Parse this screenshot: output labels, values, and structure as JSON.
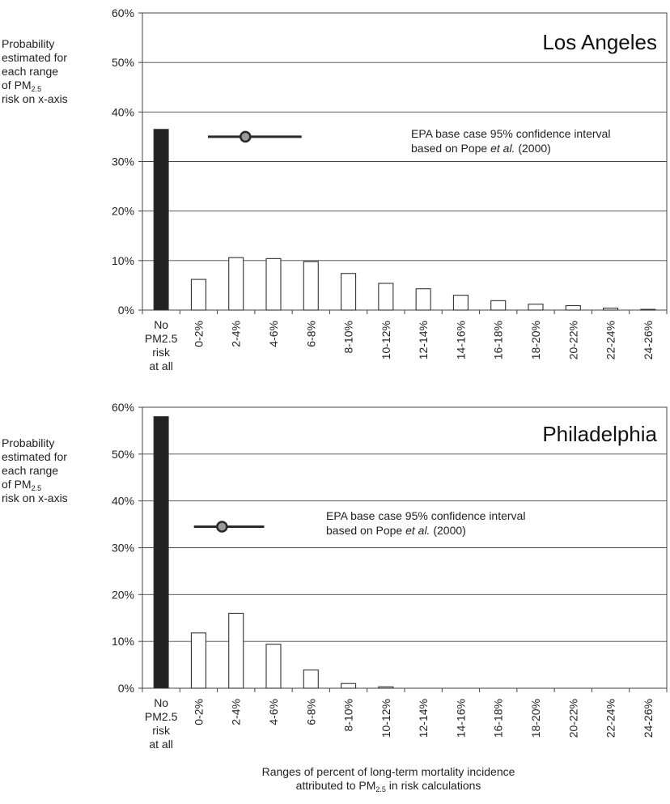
{
  "chart_data": [
    {
      "type": "bar",
      "title": "Los Angeles",
      "ylabel": {
        "line1": "Probability",
        "line2": "estimated for",
        "line3": "each range",
        "line4": "of PM",
        "line4_sub": "2.5",
        "line5": "risk on x-axis"
      },
      "ylim": [
        0,
        60
      ],
      "yticks": [
        "0%",
        "10%",
        "20%",
        "30%",
        "40%",
        "50%",
        "60%"
      ],
      "categories": [
        "No PM2.5 risk at all",
        "0-2%",
        "2-4%",
        "4-6%",
        "6-8%",
        "8-10%",
        "10-12%",
        "12-14%",
        "14-16%",
        "16-18%",
        "18-20%",
        "20-22%",
        "22-24%",
        "24-26%"
      ],
      "first_category_lines": [
        "No",
        "PM2.5",
        "risk",
        "at all"
      ],
      "values": [
        36.5,
        6.2,
        10.6,
        10.4,
        9.8,
        7.4,
        5.4,
        4.3,
        3.0,
        1.9,
        1.2,
        0.9,
        0.4,
        0.15
      ],
      "grid": true,
      "annotation": {
        "line1": "EPA base case 95% confidence interval",
        "line2_prefix": "based on Pope ",
        "line2_italic": "et al.",
        "line2_suffix": " (2000)",
        "interval_low": 1.5,
        "interval_high": 6.5,
        "interval_center": 3.5,
        "y_value": 35
      }
    },
    {
      "type": "bar",
      "title": "Philadelphia",
      "ylabel": {
        "line1": "Probability",
        "line2": "estimated for",
        "line3": "each range",
        "line4": "of PM",
        "line4_sub": "2.5",
        "line5": "risk on x-axis"
      },
      "ylim": [
        0,
        60
      ],
      "yticks": [
        "0%",
        "10%",
        "20%",
        "30%",
        "40%",
        "50%",
        "60%"
      ],
      "categories": [
        "No PM2.5 risk at all",
        "0-2%",
        "2-4%",
        "4-6%",
        "6-8%",
        "8-10%",
        "10-12%",
        "12-14%",
        "14-16%",
        "16-18%",
        "18-20%",
        "20-22%",
        "22-24%",
        "24-26%"
      ],
      "first_category_lines": [
        "No",
        "PM2.5",
        "risk",
        "at all"
      ],
      "values": [
        58,
        11.8,
        16,
        9.4,
        3.9,
        1.0,
        0.3,
        0,
        0,
        0,
        0,
        0,
        0,
        0
      ],
      "grid": true,
      "annotation": {
        "line1": "EPA base case 95% confidence interval",
        "line2_prefix": "based on Pope ",
        "line2_italic": "et al.",
        "line2_suffix": " (2000)",
        "interval_low": 0.75,
        "interval_high": 4.5,
        "interval_center": 2.25,
        "y_value": 34.5
      }
    }
  ],
  "xcaption": {
    "line1": "Ranges of percent of long-term mortality incidence",
    "line2_prefix": "attributed to PM",
    "line2_sub": "2.5",
    "line2_suffix": " in risk calculations"
  },
  "colors": {
    "first_bar": "#222222",
    "bars": "#ffffff",
    "bar_stroke": "#333333",
    "grid": "#444444",
    "ci_line": "#2a2a2a",
    "ci_marker_fill": "#999999"
  }
}
